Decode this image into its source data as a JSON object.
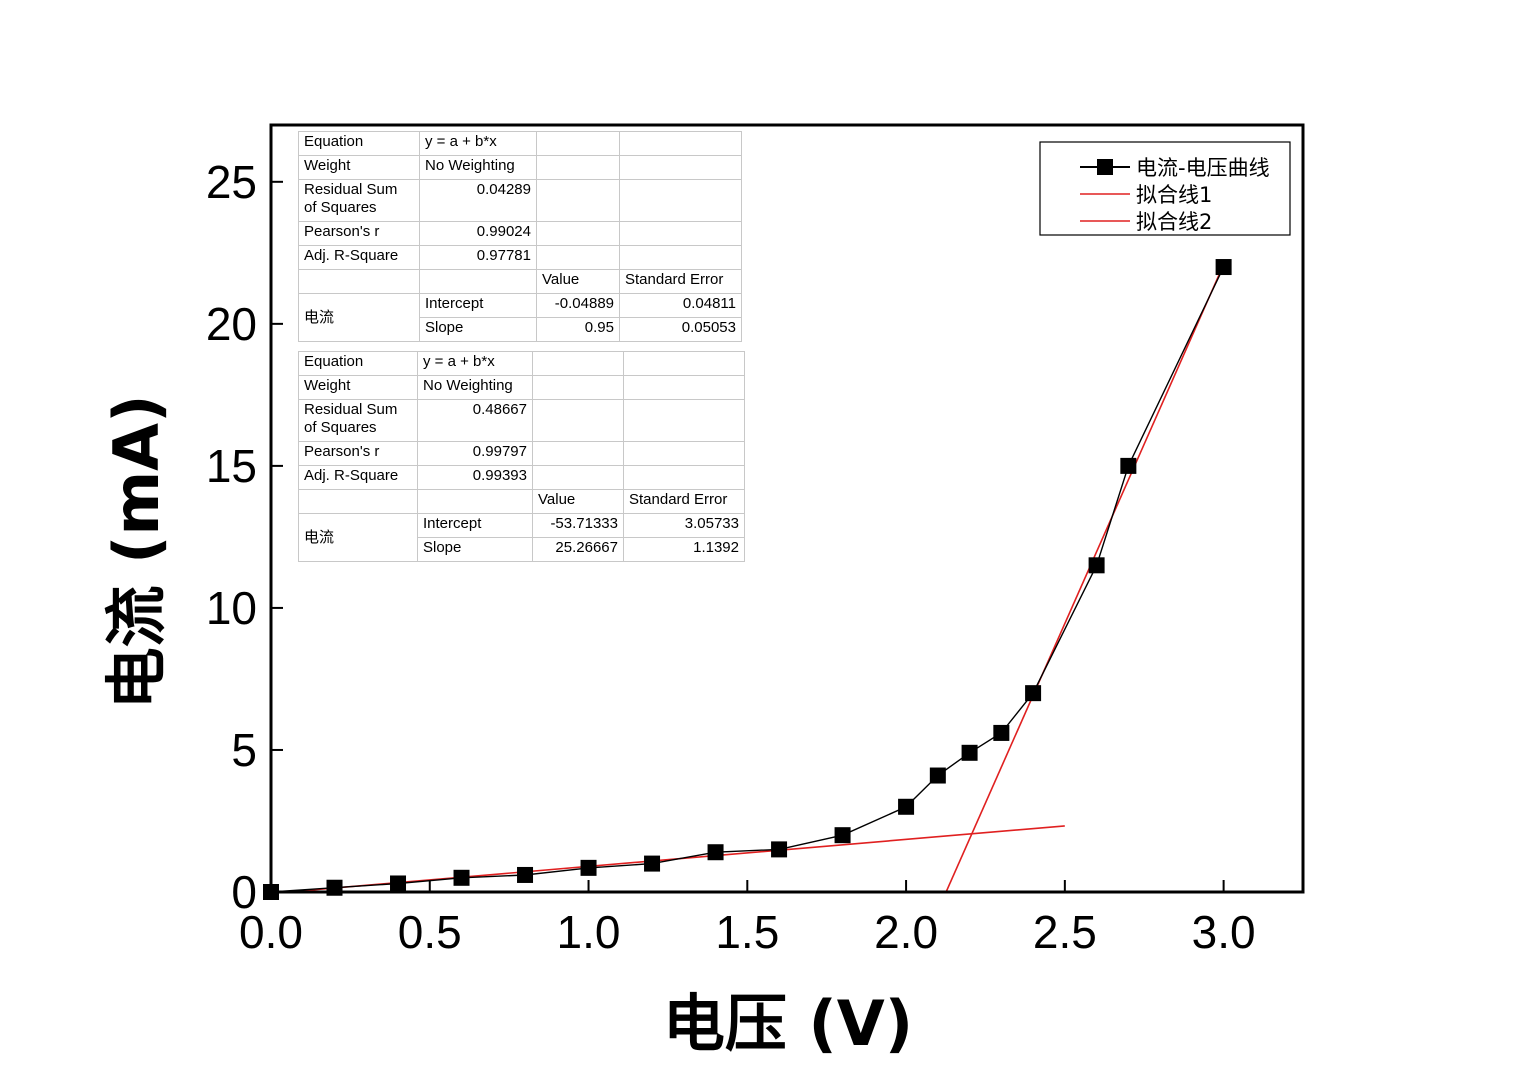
{
  "chart_data": {
    "type": "line",
    "xlabel": "电压 (V)",
    "ylabel": "电流 (mA)",
    "xlim": [
      0.0,
      3.25
    ],
    "ylim": [
      0,
      27
    ],
    "xticks": [
      "0.0",
      "0.5",
      "1.0",
      "1.5",
      "2.0",
      "2.5",
      "3.0"
    ],
    "yticks": [
      "0",
      "5",
      "10",
      "15",
      "20",
      "25"
    ],
    "grid": false,
    "legend_position": "top-right",
    "series": [
      {
        "name": "电流-电压曲线",
        "color": "#000000",
        "marker": "square",
        "x": [
          0.0,
          0.2,
          0.4,
          0.6,
          0.8,
          1.0,
          1.2,
          1.4,
          1.6,
          1.8,
          2.0,
          2.1,
          2.2,
          2.3,
          2.4,
          2.6,
          2.7,
          3.0
        ],
        "y": [
          0.0,
          0.15,
          0.3,
          0.5,
          0.6,
          0.85,
          1.0,
          1.4,
          1.5,
          2.0,
          3.0,
          4.1,
          4.9,
          5.6,
          7.0,
          11.5,
          15.0,
          22.0
        ]
      },
      {
        "name": "拟合线1",
        "color": "#e02020",
        "x": [
          0.0,
          2.5
        ],
        "y": [
          -0.04889,
          2.32611
        ]
      },
      {
        "name": "拟合线2",
        "color": "#e02020",
        "x": [
          2.1259,
          3.0
        ],
        "y": [
          0.0,
          22.086
        ]
      }
    ]
  },
  "fit_tables": [
    {
      "equation_label": "Equation",
      "equation": "y = a + b*x",
      "weight_label": "Weight",
      "weight": "No Weighting",
      "rss_label": "Residual Sum of Squares",
      "rss": "0.04289",
      "pearson_label": "Pearson's r",
      "pearson": "0.99024",
      "adjr_label": "Adj. R-Square",
      "adjr": "0.97781",
      "value_header": "Value",
      "se_header": "Standard Error",
      "group": "电流",
      "intercept_label": "Intercept",
      "intercept": "-0.04889",
      "intercept_se": "0.04811",
      "slope_label": "Slope",
      "slope": "0.95",
      "slope_se": "0.05053"
    },
    {
      "equation_label": "Equation",
      "equation": "y = a + b*x",
      "weight_label": "Weight",
      "weight": "No Weighting",
      "rss_label": "Residual Sum of Squares",
      "rss": "0.48667",
      "pearson_label": "Pearson's r",
      "pearson": "0.99797",
      "adjr_label": "Adj. R-Square",
      "adjr": "0.99393",
      "value_header": "Value",
      "se_header": "Standard Error",
      "group": "电流",
      "intercept_label": "Intercept",
      "intercept": "-53.71333",
      "intercept_se": "3.05733",
      "slope_label": "Slope",
      "slope": "25.26667",
      "slope_se": "1.1392"
    }
  ]
}
